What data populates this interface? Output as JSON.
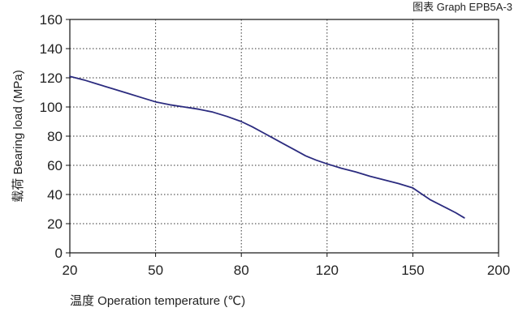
{
  "chart_data": {
    "type": "line",
    "title": "图表 Graph EPB5A-3",
    "xlabel": "温度 Operation temperature (℃)",
    "ylabel": "载荷 Bearing load (MPa)",
    "x_ticks": [
      "20",
      "50",
      "80",
      "120",
      "150",
      "200"
    ],
    "y_ticks": [
      "0",
      "20",
      "40",
      "60",
      "80",
      "100",
      "120",
      "140",
      "160"
    ],
    "ylim": [
      0,
      160
    ],
    "grid": true,
    "grid_style": "dotted",
    "legend": "none",
    "series": [
      {
        "color": "#2b2b7f",
        "points": [
          {
            "x": 20,
            "y": 121
          },
          {
            "x": 25,
            "y": 118.5
          },
          {
            "x": 30,
            "y": 115.5
          },
          {
            "x": 35,
            "y": 112.5
          },
          {
            "x": 40,
            "y": 109.5
          },
          {
            "x": 45,
            "y": 106.5
          },
          {
            "x": 50,
            "y": 103.5
          },
          {
            "x": 55,
            "y": 101.5
          },
          {
            "x": 60,
            "y": 100
          },
          {
            "x": 65,
            "y": 98.5
          },
          {
            "x": 70,
            "y": 96.5
          },
          {
            "x": 75,
            "y": 93.5
          },
          {
            "x": 80,
            "y": 90
          },
          {
            "x": 85,
            "y": 86.5
          },
          {
            "x": 90,
            "y": 82.5
          },
          {
            "x": 95,
            "y": 78.5
          },
          {
            "x": 100,
            "y": 74.5
          },
          {
            "x": 105,
            "y": 70.5
          },
          {
            "x": 110,
            "y": 66.5
          },
          {
            "x": 115,
            "y": 63.5
          },
          {
            "x": 120,
            "y": 61
          },
          {
            "x": 125,
            "y": 58
          },
          {
            "x": 130,
            "y": 55.5
          },
          {
            "x": 135,
            "y": 52.5
          },
          {
            "x": 140,
            "y": 50
          },
          {
            "x": 145,
            "y": 47.5
          },
          {
            "x": 150,
            "y": 44.5
          },
          {
            "x": 155,
            "y": 40.5
          },
          {
            "x": 160,
            "y": 36.5
          },
          {
            "x": 165,
            "y": 33.5
          },
          {
            "x": 170,
            "y": 30.5
          },
          {
            "x": 175,
            "y": 27.5
          },
          {
            "x": 180,
            "y": 24
          }
        ]
      }
    ]
  }
}
